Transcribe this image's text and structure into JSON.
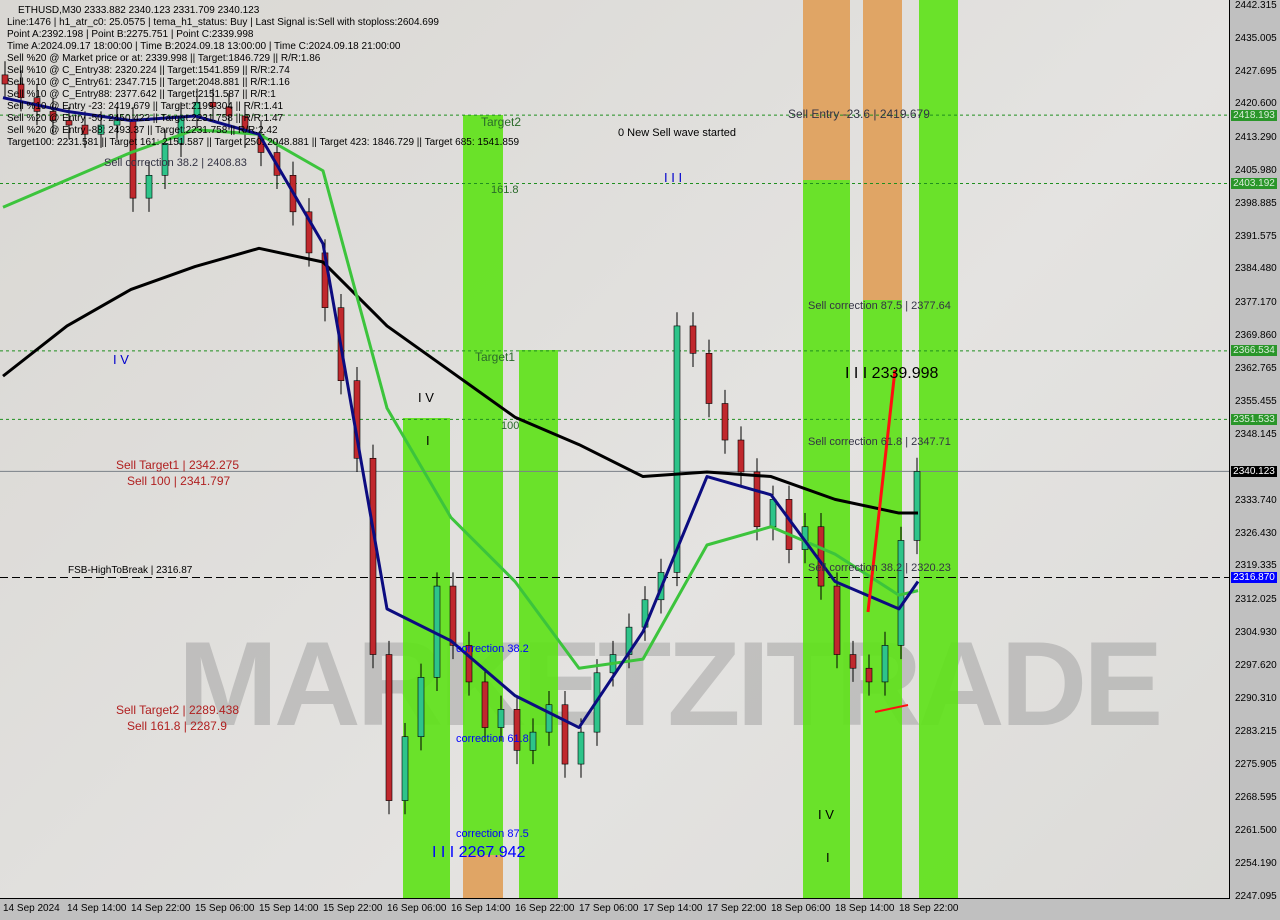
{
  "header": {
    "symbol_line": "ETHUSD,M30  2333.882 2340.123 2331.709 2340.123",
    "lines": [
      "Line:1476 | h1_atr_c0: 25.0575 | tema_h1_status: Buy | Last Signal is:Sell with stoploss:2604.699",
      "Point A:2392.198 | Point B:2275.751 | Point C:2339.998",
      "Time A:2024.09.17 18:00:00 | Time B:2024.09.18 13:00:00 | Time C:2024.09.18 21:00:00",
      "Sell %20 @ Market price or at: 2339.998 || Target:1846.729 || R/R:1.86",
      "Sell %10 @ C_Entry38: 2320.224 || Target:1541.859 || R/R:2.74",
      "Sell %10 @ C_Entry61: 2347.715 || Target:2048.881 || R/R:1.16",
      "Sell %10 @ C_Entry88: 2377.642 || Target:2151.587 || R/R:1",
      "Sell %10 @ Entry -23: 2419.679 || Target:2199.304 || R/R:1.41",
      "Sell %20 @ Entry -50: 2450.422 || Target:2231.758 || R/R:1.47",
      "Sell %20 @ Entry -88: 2493.37 || Target:2231.758 || R/R:2.42",
      "Target100: 2231.581 || Target 161: 2151.587 || Target 250: 2048.881 || Target 423: 1846.729 || Target 685: 1541.859"
    ]
  },
  "annotations": {
    "sell_corr_382_left": "Sell correction 38.2 | 2408.83",
    "target2": "Target2",
    "fib_1618": "161.8",
    "target1": "Target1",
    "fib_100": "100",
    "new_wave": "0 New Sell wave started",
    "wave_iii_top": "I I I",
    "sell_entry": "Sell Entry -23.6 | 2419.679",
    "sell_corr_875": "Sell correction 87.5 | 2377.64",
    "point_c": "I I I 2339.998",
    "sell_corr_618": "Sell correction 61.8 | 2347.71",
    "sell_corr_382": "Sell correction 38.2 | 2320.23",
    "wave_iv_left": "I V",
    "wave_iv_mid": "I V",
    "wave_i_mid": "I",
    "wave_iv_right": "I V",
    "wave_i_right": "I",
    "correction_382": "correction 38.2",
    "correction_618": "correction 61.8",
    "correction_875": "correction 87.5",
    "wave_iii_low": "I I I 2267.942",
    "sell_target1": "Sell Target1 | 2342.275",
    "sell_100": "Sell 100 | 2341.797",
    "sell_target2": "Sell Target2 | 2289.438",
    "sell_1618": "Sell 161.8 | 2287.9",
    "fsb": "FSB-HighToBreak | 2316.87"
  },
  "watermark": "MARKETZITRADE",
  "colors": {
    "bull": "#2ec48a",
    "bear": "#c0282d",
    "band_green": "#5fe21a",
    "band_orange": "#e0a05a",
    "ma_slow": "#000000",
    "ma_mid": "#3cc43c",
    "ma_fast": "#0c0c80",
    "level_green": "#1f8f1f",
    "fsb_blue": "#0000ff"
  },
  "chart_data": {
    "type": "candlestick",
    "symbol": "ETHUSD",
    "timeframe": "M30",
    "time_start": "2024-09-14 06:00",
    "bar_interval_hours": 2,
    "closes": [
      2425,
      2422,
      2419,
      2417,
      2416,
      2414,
      2416,
      2417,
      2400,
      2405,
      2412,
      2418,
      2421,
      2420,
      2418,
      2414,
      2410,
      2405,
      2397,
      2388,
      2376,
      2360,
      2343,
      2300,
      2268,
      2282,
      2295,
      2315,
      2302,
      2294,
      2284,
      2288,
      2279,
      2283,
      2289,
      2276,
      2283,
      2296,
      2300,
      2306,
      2312,
      2318,
      2372,
      2366,
      2355,
      2347,
      2340,
      2328,
      2334,
      2323,
      2328,
      2315,
      2300,
      2297,
      2294,
      2302,
      2325,
      2340.123
    ],
    "x_ticks": [
      "14 Sep 2024",
      "14 Sep 14:00",
      "14 Sep 22:00",
      "15 Sep 06:00",
      "15 Sep 14:00",
      "15 Sep 22:00",
      "16 Sep 06:00",
      "16 Sep 14:00",
      "16 Sep 22:00",
      "17 Sep 06:00",
      "17 Sep 14:00",
      "17 Sep 22:00",
      "18 Sep 06:00",
      "18 Sep 14:00",
      "18 Sep 22:00"
    ],
    "y_ticks": [
      "2442.315",
      "2435.005",
      "2427.695",
      "2420.600",
      "2413.290",
      "2405.980",
      "2398.885",
      "2391.575",
      "2384.480",
      "2377.170",
      "2369.860",
      "2362.765",
      "2355.455",
      "2348.145",
      "2333.740",
      "2326.430",
      "2319.335",
      "2312.025",
      "2304.930",
      "2297.620",
      "2290.310",
      "2283.215",
      "2275.905",
      "2268.595",
      "2261.500",
      "2254.190",
      "2247.095"
    ],
    "ylim": [
      2247.095,
      2442.315
    ],
    "moving_averages": [
      {
        "color": "#000000",
        "values_at_x_ticks": [
          2361,
          2372,
          2380,
          2385,
          2389,
          2386,
          2372,
          2362,
          2352,
          2346,
          2339,
          2340,
          2339,
          2334,
          2331
        ],
        "last": 2331
      },
      {
        "color": "#3cc43c",
        "values_at_x_ticks": [
          2398,
          2404,
          2410,
          2415,
          2414,
          2406,
          2354,
          2330,
          2316,
          2297,
          2299,
          2324,
          2328,
          2322,
          2313
        ],
        "last": 2314
      },
      {
        "color": "#0c0c80",
        "values_at_x_ticks": [
          2422,
          2419,
          2417,
          2418,
          2414,
          2390,
          2310,
          2303,
          2291,
          2284,
          2305,
          2339,
          2335,
          2316,
          2310
        ],
        "last": 2316
      }
    ],
    "levels": [
      {
        "price": 2418.193,
        "label": "2418.193",
        "style": "green-dash"
      },
      {
        "price": 2403.192,
        "label": "2403.192",
        "style": "green-dash"
      },
      {
        "price": 2366.534,
        "label": "2366.534",
        "style": "green-dash"
      },
      {
        "price": 2351.533,
        "label": "2351.533",
        "style": "green-dash"
      },
      {
        "price": 2340.123,
        "label": "2340.123",
        "style": "current"
      },
      {
        "price": 2316.87,
        "label": "2316.870",
        "style": "blue-dash"
      }
    ]
  }
}
